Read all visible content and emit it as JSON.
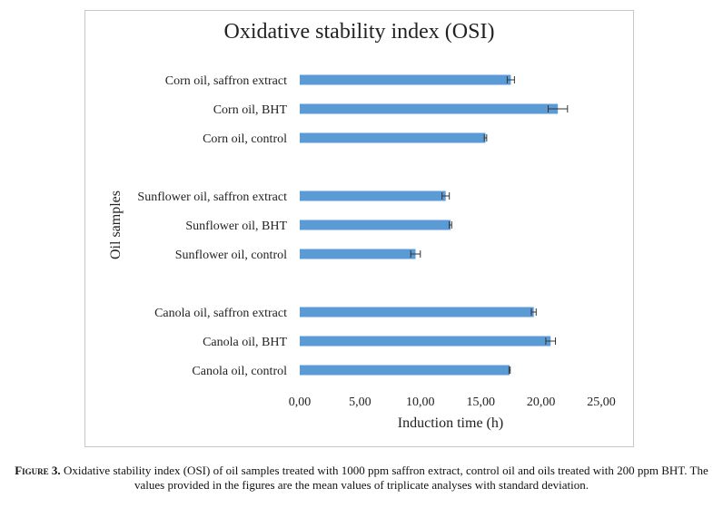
{
  "chart_data": {
    "type": "bar",
    "orientation": "horizontal",
    "title": "Oxidative stability index (OSI)",
    "xlabel": "Induction time (h)",
    "ylabel": "Oil samples",
    "xlim": [
      0,
      25
    ],
    "xticks": [
      "0,00",
      "5,00",
      "10,00",
      "15,00",
      "20,00",
      "25,00"
    ],
    "grid": false,
    "bar_color": "#5b9bd5",
    "categories": [
      "Corn oil, saffron extract",
      "Corn oil, BHT",
      "Corn oil, control",
      "Sunflower oil, saffron extract",
      "Sunflower oil, BHT",
      "Sunflower oil, control",
      "Canola oil, saffron extract",
      "Canola oil, BHT",
      "Canola oil, control"
    ],
    "values": [
      17.5,
      21.4,
      15.4,
      12.1,
      12.5,
      9.6,
      19.4,
      20.8,
      17.4
    ],
    "errors": [
      0.3,
      0.8,
      0.1,
      0.3,
      0.1,
      0.4,
      0.2,
      0.4,
      0.05
    ]
  },
  "caption": {
    "label": "Figure 3.",
    "text": " Oxidative stability index (OSI) of oil samples treated with 1000 ppm saffron extract, control oil and oils treated with 200 ppm BHT. The values provided in the figures are the mean values of triplicate analyses with standard deviation."
  }
}
